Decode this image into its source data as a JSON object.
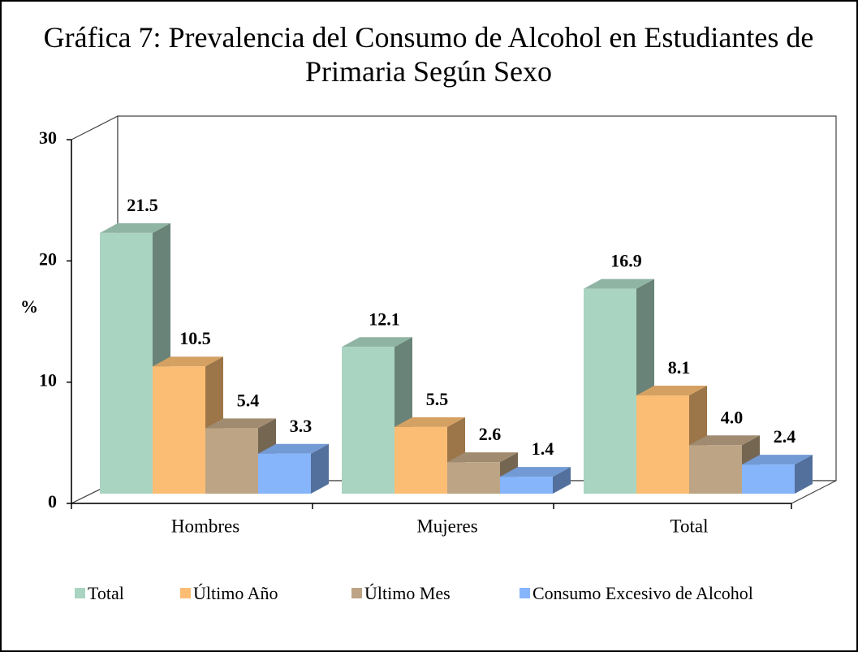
{
  "chart_data": {
    "type": "bar3d",
    "title": "Gráfica 7: Prevalencia del Consumo de Alcohol en Estudiantes de Primaria Según Sexo",
    "y_label": "%",
    "categories": [
      "Hombres",
      "Mujeres",
      "Total"
    ],
    "series": [
      {
        "name": "Total",
        "color": "#a9d4c1",
        "values": [
          21.5,
          12.1,
          16.9
        ]
      },
      {
        "name": "Último Año",
        "color": "#fbbd74",
        "values": [
          10.5,
          5.5,
          8.1
        ]
      },
      {
        "name": "Último Mes",
        "color": "#bca485",
        "values": [
          5.4,
          2.6,
          4
        ],
        "value_labels": [
          "5.4",
          "2.6",
          "4.0"
        ]
      },
      {
        "name": "Consumo Excesivo de Alcohol",
        "color": "#86b5fb",
        "values": [
          3.3,
          1.4,
          2.4
        ]
      }
    ],
    "ylim": [
      0,
      30
    ],
    "yticks": [
      0,
      10,
      20,
      30
    ]
  }
}
